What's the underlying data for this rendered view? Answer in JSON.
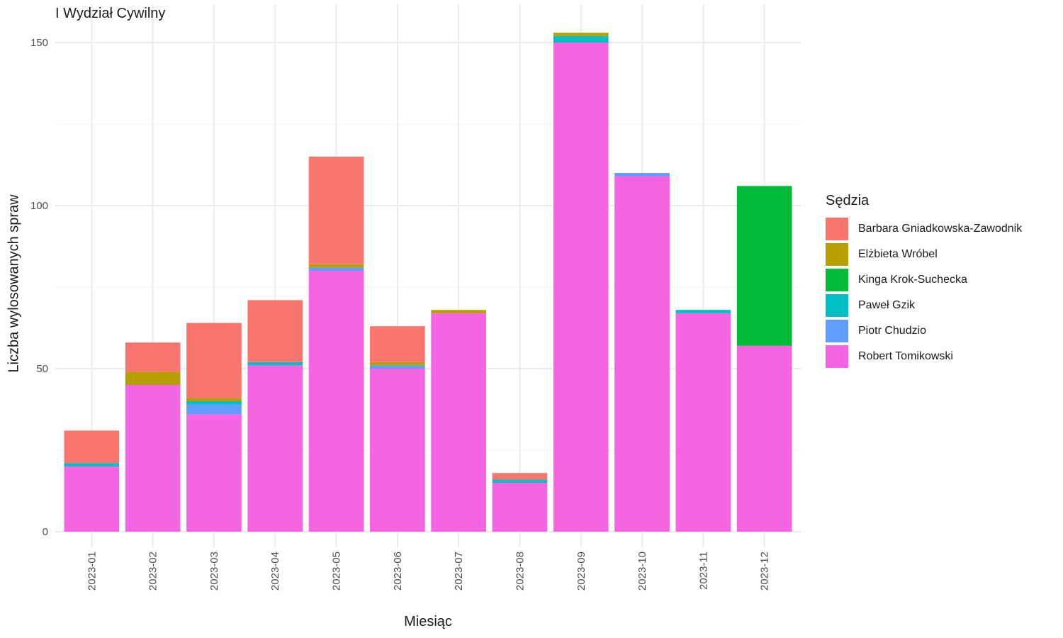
{
  "chart_data": {
    "type": "bar",
    "stacked": true,
    "title": "I Wydział Cywilny",
    "xlabel": "Miesiąc",
    "ylabel": "Liczba wylosowanych spraw",
    "ylim": [
      0,
      157
    ],
    "yticks": [
      0,
      50,
      100,
      150
    ],
    "grid": true,
    "legend": {
      "title": "Sędzia",
      "position": "right"
    },
    "categories": [
      "2023-01",
      "2023-02",
      "2023-03",
      "2023-04",
      "2023-05",
      "2023-06",
      "2023-07",
      "2023-08",
      "2023-09",
      "2023-10",
      "2023-11",
      "2023-12"
    ],
    "series": [
      {
        "name": "Robert Tomikowski",
        "color": "#F564E3",
        "values": [
          20,
          45,
          36,
          51,
          80,
          50,
          67,
          15,
          150,
          109,
          67,
          57
        ]
      },
      {
        "name": "Piotr Chudzio",
        "color": "#619CFF",
        "values": [
          0,
          0,
          3,
          0,
          1,
          1,
          0,
          0,
          0,
          1,
          0,
          0
        ]
      },
      {
        "name": "Paweł Gzik",
        "color": "#00BFC4",
        "values": [
          1,
          0,
          1,
          1,
          0,
          0,
          0,
          1,
          2,
          0,
          1,
          0
        ]
      },
      {
        "name": "Kinga Krok-Suchecka",
        "color": "#00BA38",
        "values": [
          0,
          0,
          0,
          0,
          0,
          0,
          0,
          0,
          0,
          0,
          0,
          49
        ]
      },
      {
        "name": "Elżbieta Wróbel",
        "color": "#B79F00",
        "values": [
          0,
          4,
          1,
          0,
          1,
          1,
          1,
          0,
          1,
          0,
          0,
          0
        ]
      },
      {
        "name": "Barbara Gniadkowska-Zawodnik",
        "color": "#F8766D",
        "values": [
          10,
          9,
          23,
          19,
          33,
          11,
          0,
          2,
          0,
          0,
          0,
          0
        ]
      }
    ]
  }
}
